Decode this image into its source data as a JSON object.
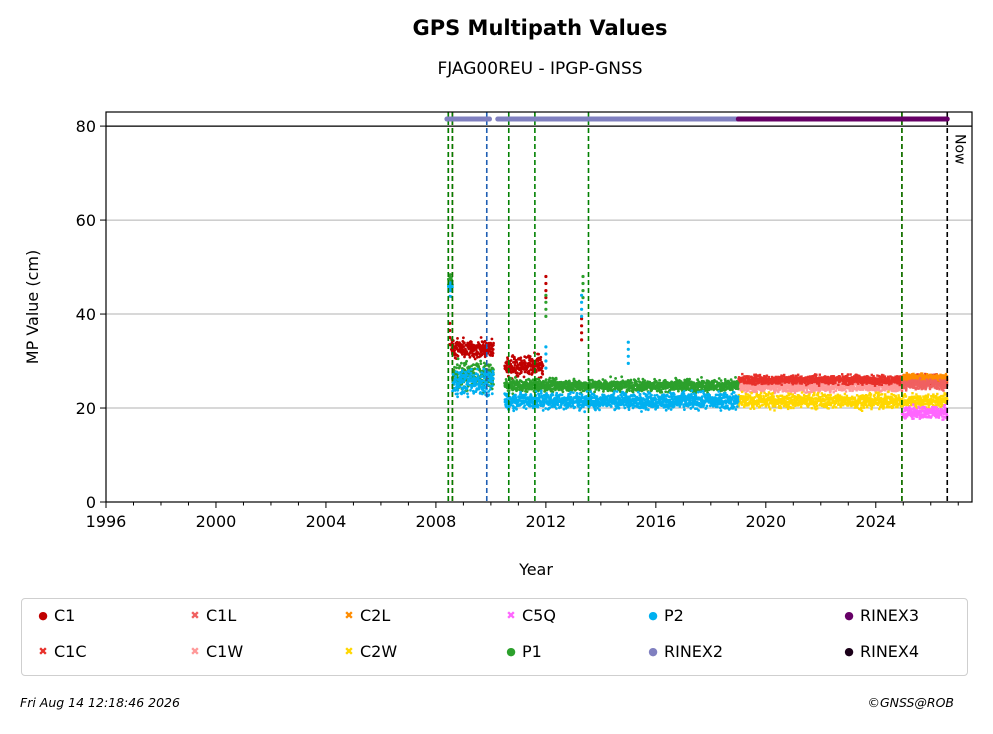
{
  "chart_data": {
    "type": "scatter",
    "title": "GPS Multipath Values",
    "subtitle": "FJAG00REU - IPGP-GNSS",
    "xlabel": "Year",
    "ylabel": "MP Value (cm)",
    "xlim": [
      1996,
      2027.5
    ],
    "ylim": [
      0,
      83
    ],
    "x_ticks": [
      1996,
      2000,
      2004,
      2008,
      2012,
      2016,
      2020,
      2024
    ],
    "y_ticks": [
      0,
      20,
      40,
      60,
      80
    ],
    "grid": "horizontal",
    "reference_line_y": 80,
    "now_label": "Now",
    "now_x": 2026.6,
    "vertical_lines": [
      {
        "x": 2008.45,
        "color": "#cc0000"
      },
      {
        "x": 2008.45,
        "color": "#008000"
      },
      {
        "x": 2008.6,
        "color": "#cc0000"
      },
      {
        "x": 2008.6,
        "color": "#008000"
      },
      {
        "x": 2009.85,
        "color": "#1f5fb4"
      },
      {
        "x": 2010.65,
        "color": "#008000"
      },
      {
        "x": 2011.6,
        "color": "#008000"
      },
      {
        "x": 2013.55,
        "color": "#008000"
      },
      {
        "x": 2024.95,
        "color": "#cc0000"
      },
      {
        "x": 2024.95,
        "color": "#008000"
      },
      {
        "x": 2026.6,
        "color": "#000000"
      }
    ],
    "rinex_bars": [
      {
        "name": "RINEX2",
        "from": 2008.4,
        "to": 2009.95,
        "y": 81.5,
        "color": "#8080c0"
      },
      {
        "name": "RINEX2",
        "from": 2010.25,
        "to": 2019.0,
        "y": 81.5,
        "color": "#8080c0"
      },
      {
        "name": "RINEX3",
        "from": 2019.0,
        "to": 2026.6,
        "y": 81.5,
        "color": "#660066"
      }
    ],
    "series": [
      {
        "name": "C1",
        "color": "#c00000",
        "marker": "dot",
        "segments": [
          {
            "from": 2008.55,
            "to": 2010.1,
            "mean": 32.5,
            "spread": 1.8
          },
          {
            "from": 2010.5,
            "to": 2011.9,
            "mean": 29.0,
            "spread": 2.0
          }
        ]
      },
      {
        "name": "P1",
        "color": "#2ca02c",
        "marker": "dot",
        "segments": [
          {
            "from": 2008.45,
            "to": 2008.6,
            "mean": 47.0,
            "spread": 2.0
          },
          {
            "from": 2008.6,
            "to": 2010.1,
            "mean": 27.0,
            "spread": 2.5
          },
          {
            "from": 2010.5,
            "to": 2019.0,
            "mean": 24.8,
            "spread": 1.2
          }
        ]
      },
      {
        "name": "P2",
        "color": "#00b0f0",
        "marker": "dot",
        "segments": [
          {
            "from": 2008.45,
            "to": 2008.6,
            "mean": 45.5,
            "spread": 1.5
          },
          {
            "from": 2008.6,
            "to": 2010.1,
            "mean": 25.5,
            "spread": 2.5
          },
          {
            "from": 2010.5,
            "to": 2019.0,
            "mean": 21.5,
            "spread": 1.6
          }
        ]
      },
      {
        "name": "C1C",
        "color": "#e8302a",
        "marker": "x",
        "segments": [
          {
            "from": 2019.0,
            "to": 2026.6,
            "mean": 26.0,
            "spread": 0.9
          }
        ]
      },
      {
        "name": "C1L",
        "color": "#f06060",
        "marker": "x",
        "segments": [
          {
            "from": 2024.95,
            "to": 2026.6,
            "mean": 25.0,
            "spread": 1.0
          }
        ]
      },
      {
        "name": "C1W",
        "color": "#ff9999",
        "marker": "x",
        "segments": [
          {
            "from": 2019.0,
            "to": 2024.95,
            "mean": 24.5,
            "spread": 1.0
          }
        ]
      },
      {
        "name": "C2L",
        "color": "#ff8c00",
        "marker": "x",
        "segments": [
          {
            "from": 2024.95,
            "to": 2026.6,
            "mean": 26.3,
            "spread": 0.9
          }
        ]
      },
      {
        "name": "C2W",
        "color": "#ffd700",
        "marker": "x",
        "segments": [
          {
            "from": 2019.0,
            "to": 2026.6,
            "mean": 21.5,
            "spread": 1.4
          }
        ]
      },
      {
        "name": "C5Q",
        "color": "#ff66ff",
        "marker": "x",
        "segments": [
          {
            "from": 2024.95,
            "to": 2026.6,
            "mean": 19.0,
            "spread": 1.2
          }
        ]
      }
    ],
    "spikes": [
      {
        "series": "C1",
        "x": 2008.5,
        "y": 38
      },
      {
        "series": "C1",
        "x": 2012.0,
        "y": 48
      },
      {
        "series": "C1",
        "x": 2013.3,
        "y": 39
      },
      {
        "series": "P1",
        "x": 2013.35,
        "y": 48
      },
      {
        "series": "P1",
        "x": 2012.0,
        "y": 44
      },
      {
        "series": "P2",
        "x": 2013.3,
        "y": 44
      },
      {
        "series": "P2",
        "x": 2015.0,
        "y": 34
      },
      {
        "series": "P2",
        "x": 2012.0,
        "y": 33
      }
    ]
  },
  "legend": {
    "items": [
      {
        "label": "C1",
        "color": "#c00000",
        "marker": "●"
      },
      {
        "label": "C1C",
        "color": "#e8302a",
        "marker": "✖"
      },
      {
        "label": "C1L",
        "color": "#f06060",
        "marker": "✖"
      },
      {
        "label": "C1W",
        "color": "#ff9999",
        "marker": "✖"
      },
      {
        "label": "C2L",
        "color": "#ff8c00",
        "marker": "✖"
      },
      {
        "label": "C2W",
        "color": "#ffd700",
        "marker": "✖"
      },
      {
        "label": "C5Q",
        "color": "#ff66ff",
        "marker": "✖"
      },
      {
        "label": "P1",
        "color": "#2ca02c",
        "marker": "●"
      },
      {
        "label": "P2",
        "color": "#00b0f0",
        "marker": "●"
      },
      {
        "label": "RINEX2",
        "color": "#8080c0",
        "marker": "●"
      },
      {
        "label": "RINEX3",
        "color": "#660066",
        "marker": "●"
      },
      {
        "label": "RINEX4",
        "color": "#1a0018",
        "marker": "●"
      }
    ]
  },
  "footer": {
    "timestamp": "Fri Aug 14 12:18:46 2026",
    "copyright": "©GNSS@ROB"
  }
}
